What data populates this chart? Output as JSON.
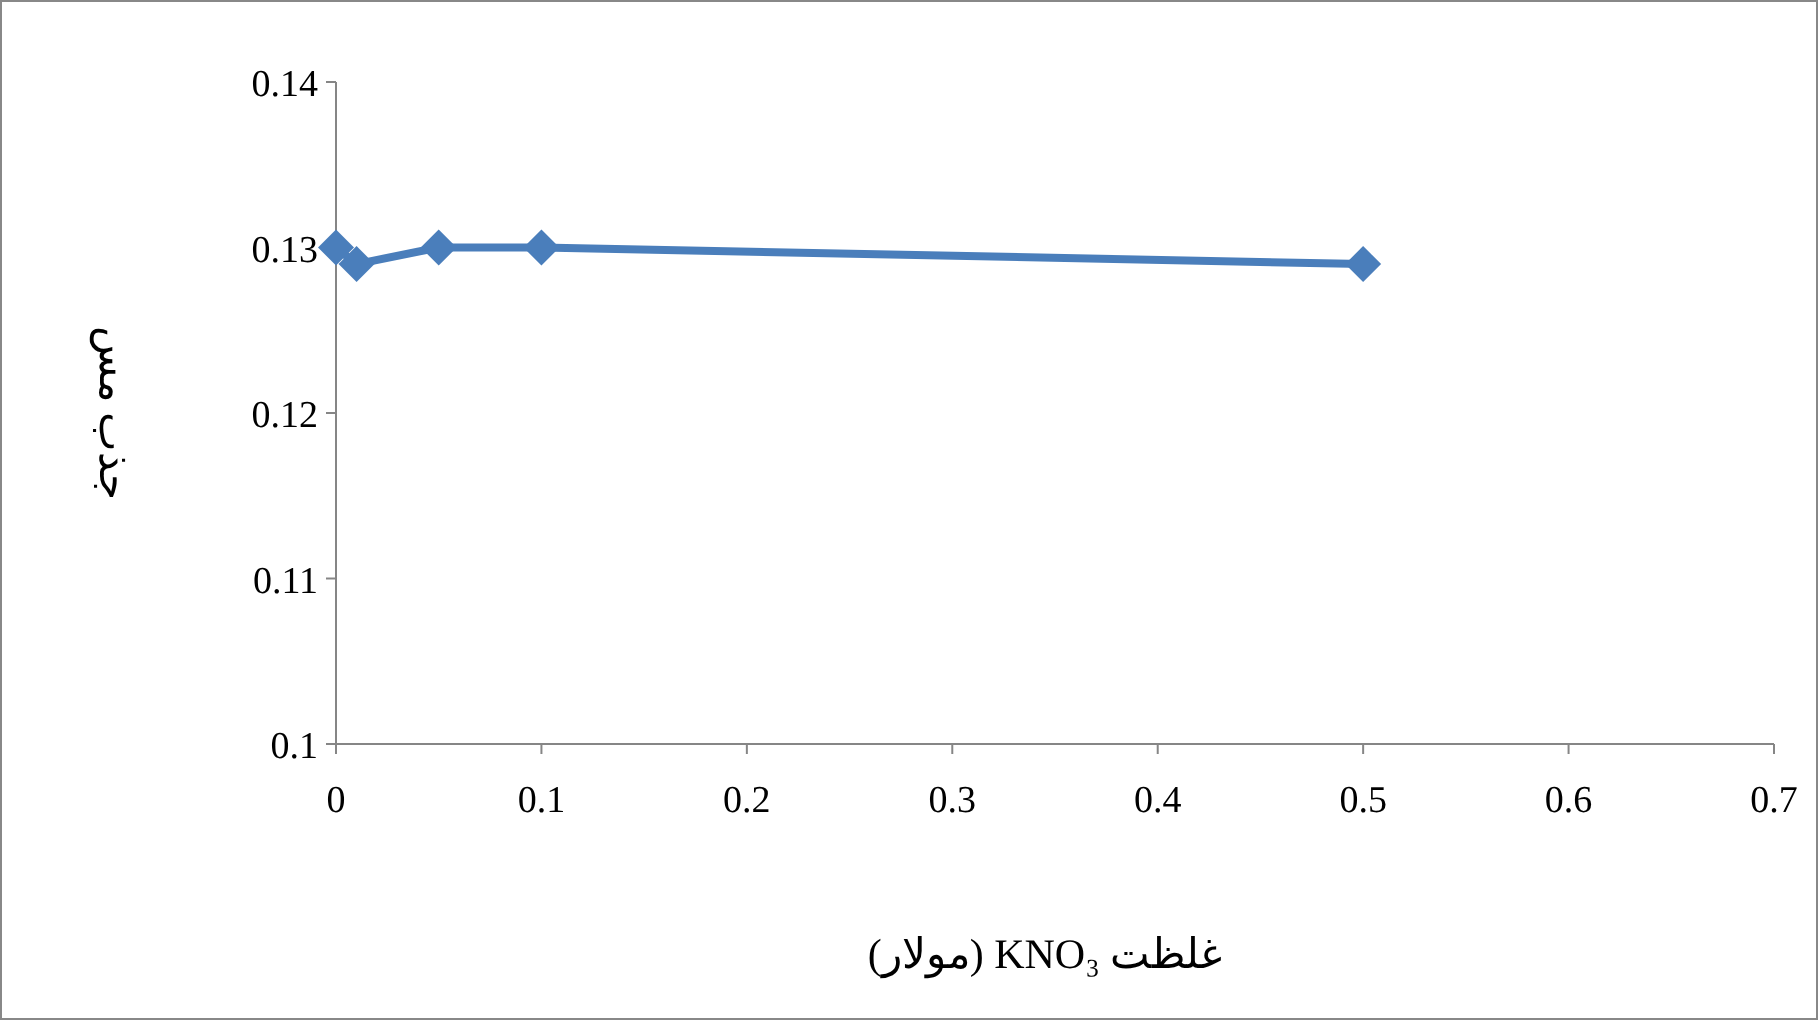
{
  "chart_data": {
    "type": "line",
    "xlabel": "غلظت KNO₃ (مولار)",
    "ylabel": "جذب مس",
    "x": [
      0,
      0.01,
      0.05,
      0.1,
      0.5
    ],
    "series": [
      {
        "color": "#4a7ebb",
        "values": [
          0.13,
          0.129,
          0.13,
          0.13,
          0.129
        ]
      }
    ],
    "xlim": [
      0,
      0.7
    ],
    "xticks": [
      0,
      0.1,
      0.2,
      0.3,
      0.4,
      0.5,
      0.6,
      0.7
    ],
    "ylim": [
      0.1,
      0.14
    ],
    "yticks": [
      0.1,
      0.11,
      0.12,
      0.13,
      0.14
    ],
    "marker": "diamond",
    "line_style": "solid",
    "grid": false
  }
}
